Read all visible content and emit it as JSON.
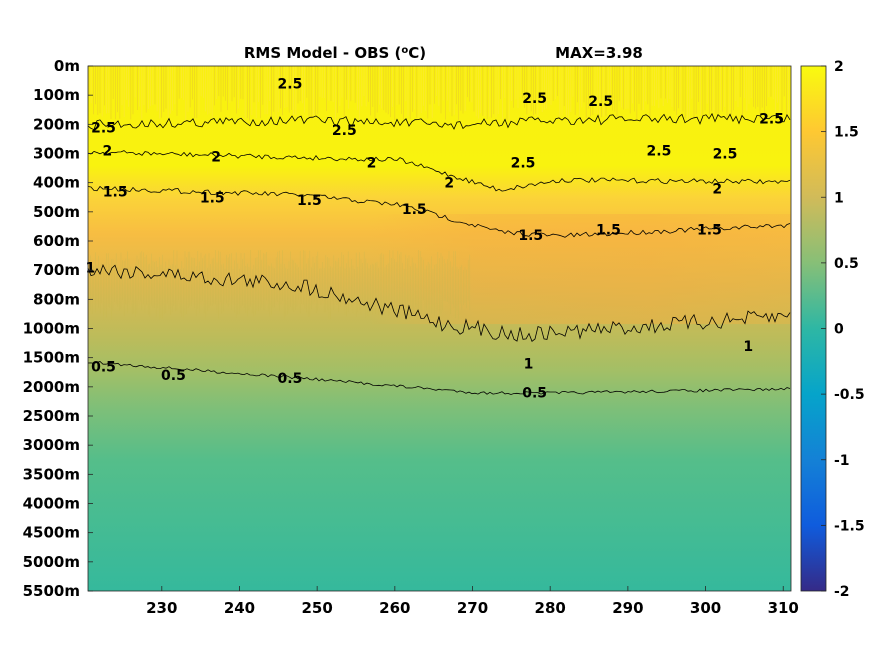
{
  "chart_data": {
    "type": "heatmap",
    "title": "RMS Model - OBS (°C)",
    "title_left": "RMS Model - OBS (",
    "title_unit_sup": "o",
    "title_unit": "C)",
    "max_label": "MAX=3.98",
    "x_ticks": [
      "230",
      "240",
      "250",
      "260",
      "270",
      "280",
      "290",
      "300",
      "310"
    ],
    "x_tick_values": [
      230,
      240,
      250,
      260,
      270,
      280,
      290,
      300,
      310
    ],
    "xlim": [
      220.5,
      311
    ],
    "y_ticks": [
      "0m",
      "100m",
      "200m",
      "300m",
      "400m",
      "500m",
      "600m",
      "700m",
      "800m",
      "1000m",
      "1500m",
      "2000m",
      "2500m",
      "3000m",
      "3500m",
      "4000m",
      "4500m",
      "5000m",
      "5500m"
    ],
    "colorbar": {
      "ticks": [
        "2",
        "1.5",
        "1",
        "0.5",
        "0",
        "-0.5",
        "-1",
        "-1.5",
        "-2"
      ],
      "tick_values": [
        2,
        1.5,
        1,
        0.5,
        0,
        -0.5,
        -1,
        -1.5,
        -2
      ],
      "clim": [
        -2,
        2
      ],
      "colormap": "parula"
    },
    "contours": [
      {
        "level": 2.5,
        "labels": [
          {
            "text": "2.5",
            "x": 222.5,
            "depth_idx": 2.1
          },
          {
            "text": "2.5",
            "x": 246.5,
            "depth_idx": 0.6
          },
          {
            "text": "2.5",
            "x": 253.5,
            "depth_idx": 2.2
          },
          {
            "text": "2.5",
            "x": 278,
            "depth_idx": 1.1
          },
          {
            "text": "2.5",
            "x": 276.5,
            "depth_idx": 3.3
          },
          {
            "text": "2.5",
            "x": 286.5,
            "depth_idx": 1.2
          },
          {
            "text": "2.5",
            "x": 294,
            "depth_idx": 2.9
          },
          {
            "text": "2.5",
            "x": 302.5,
            "depth_idx": 3.0
          },
          {
            "text": "2.5",
            "x": 308.5,
            "depth_idx": 1.8
          }
        ]
      },
      {
        "level": 2,
        "labels": [
          {
            "text": "2",
            "x": 223,
            "depth_idx": 2.9
          },
          {
            "text": "2",
            "x": 237,
            "depth_idx": 3.1
          },
          {
            "text": "2",
            "x": 257,
            "depth_idx": 3.3
          },
          {
            "text": "2",
            "x": 267,
            "depth_idx": 4.0
          },
          {
            "text": "2",
            "x": 301.5,
            "depth_idx": 4.2
          }
        ]
      },
      {
        "level": 1.5,
        "labels": [
          {
            "text": "1.5",
            "x": 224,
            "depth_idx": 4.3
          },
          {
            "text": "1.5",
            "x": 236.5,
            "depth_idx": 4.5
          },
          {
            "text": "1.5",
            "x": 249,
            "depth_idx": 4.6
          },
          {
            "text": "1.5",
            "x": 262.5,
            "depth_idx": 4.9
          },
          {
            "text": "1.5",
            "x": 277.5,
            "depth_idx": 5.8
          },
          {
            "text": "1.5",
            "x": 287.5,
            "depth_idx": 5.6
          },
          {
            "text": "1.5",
            "x": 300.5,
            "depth_idx": 5.6
          }
        ]
      },
      {
        "level": 1,
        "labels": [
          {
            "text": "1",
            "x": 220.8,
            "depth_idx": 6.9
          },
          {
            "text": "1",
            "x": 277.2,
            "depth_idx": 10.2
          },
          {
            "text": "1",
            "x": 305.5,
            "depth_idx": 9.6
          }
        ]
      },
      {
        "level": 0.5,
        "labels": [
          {
            "text": "0.5",
            "x": 222.5,
            "depth_idx": 10.3
          },
          {
            "text": "0.5",
            "x": 231.5,
            "depth_idx": 10.6
          },
          {
            "text": "0.5",
            "x": 246.5,
            "depth_idx": 10.7
          },
          {
            "text": "0.5",
            "x": 278,
            "depth_idx": 11.2
          }
        ]
      }
    ],
    "grid": false,
    "legend": "colorbar-right"
  }
}
